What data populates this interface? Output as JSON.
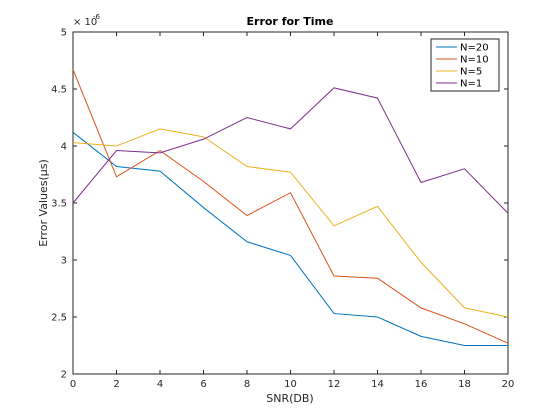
{
  "chart_data": {
    "type": "line",
    "title": "Error for Time",
    "xlabel": "SNR(DB)",
    "ylabel": "Error Values(μs)",
    "y_exponent_base": "× 10",
    "y_exponent_power": "-6",
    "xlim": [
      0,
      20
    ],
    "ylim": [
      2,
      5
    ],
    "xticks": [
      0,
      2,
      4,
      6,
      8,
      10,
      12,
      14,
      16,
      18,
      20
    ],
    "yticks": [
      2,
      2.5,
      3,
      3.5,
      4,
      4.5,
      5
    ],
    "ytick_labels": [
      "2",
      "2.5",
      "3",
      "3.5",
      "4",
      "4.5",
      "5"
    ],
    "grid": false,
    "legend_position": "top-right",
    "x": [
      0,
      2,
      4,
      6,
      8,
      10,
      12,
      14,
      16,
      18,
      20
    ],
    "series": [
      {
        "name": "N=20",
        "color": "#0072bd",
        "values": [
          4.12,
          3.82,
          3.78,
          3.46,
          3.16,
          3.04,
          2.53,
          2.5,
          2.33,
          2.25,
          2.25
        ]
      },
      {
        "name": "N=10",
        "color": "#d95319",
        "values": [
          4.67,
          3.73,
          3.96,
          3.69,
          3.39,
          3.59,
          2.86,
          2.84,
          2.58,
          2.44,
          2.27
        ]
      },
      {
        "name": "N=5",
        "color": "#edb120",
        "values": [
          4.03,
          4.0,
          4.15,
          4.08,
          3.82,
          3.77,
          3.3,
          3.47,
          2.98,
          2.58,
          2.5
        ]
      },
      {
        "name": "N=1",
        "color": "#7e2f8e",
        "values": [
          3.5,
          3.96,
          3.94,
          4.06,
          4.25,
          4.15,
          4.51,
          4.42,
          3.68,
          3.8,
          3.41
        ]
      }
    ]
  }
}
